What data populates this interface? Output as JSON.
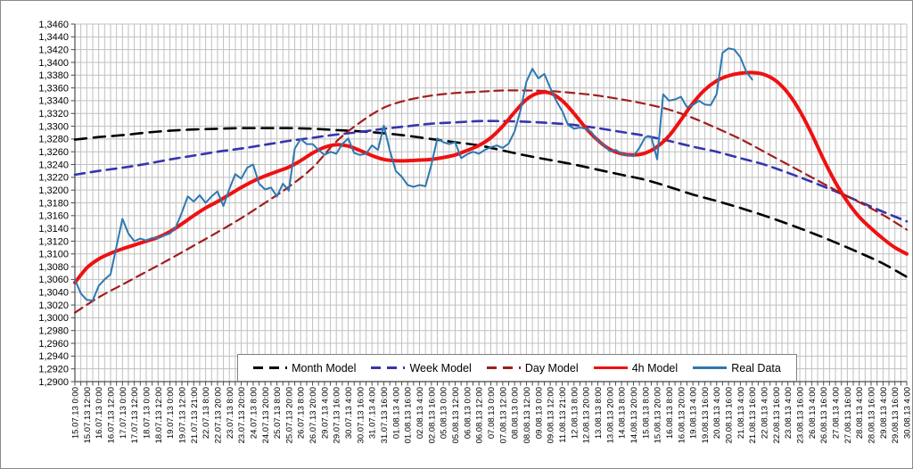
{
  "window": {
    "background": "#ffffff",
    "frame_border_color": "#8a8a8a",
    "axis_color": "#4d4d4d",
    "grid_color": "#c0c0c0",
    "label_color": "#000000"
  },
  "chart_data": {
    "type": "line",
    "title": "",
    "xlabel": "",
    "ylabel": "",
    "grid": {
      "vertical": true,
      "horizontal": true
    },
    "legend_position": "bottom-inside",
    "y_axis": {
      "min": 1.29,
      "max": 1.346,
      "step": 0.002,
      "decimal_separator": ",",
      "tick_labels": [
        "1,3460",
        "1,3440",
        "1,3420",
        "1,3400",
        "1,3380",
        "1,3360",
        "1,3340",
        "1,3320",
        "1,3300",
        "1,3280",
        "1,3260",
        "1,3240",
        "1,3220",
        "1,3200",
        "1,3180",
        "1,3160",
        "1,3140",
        "1,3120",
        "1,3100",
        "1,3080",
        "1,3060",
        "1,3040",
        "1,3020",
        "1,3000",
        "1,2980",
        "1,2960",
        "1,2940",
        "1,2920",
        "1,2900"
      ]
    },
    "x_axis": {
      "total_bars": 140,
      "bars_per_label": 2,
      "label_rotation_deg": -90,
      "labels": [
        "15.07.13 0:00",
        "15.07.13 12:00",
        "16.07.13 0:00",
        "16.07.13 12:00",
        "17.07.13 0:00",
        "17.07.13 12:00",
        "18.07.13 0:00",
        "18.07.13 12:00",
        "19.07.13 0:00",
        "19.07.13 12:00",
        "21.07.13 21:00",
        "22.07.13 8:00",
        "22.07.13 20:00",
        "23.07.13 8:00",
        "23.07.13 20:00",
        "24.07.13 8:00",
        "24.07.13 20:00",
        "25.07.13 8:00",
        "25.07.13 20:00",
        "26.07.13 8:00",
        "26.07.13 20:00",
        "29.07.13 4:00",
        "29.07.13 16:00",
        "30.07.13 4:00",
        "30.07.13 16:00",
        "31.07.13 4:00",
        "31.07.13 16:00",
        "01.08.13 4:00",
        "01.08.13 16:00",
        "02.08.13 4:00",
        "02.08.13 16:00",
        "05.08.13 0:00",
        "05.08.13 12:00",
        "06.08.13 0:00",
        "06.08.13 12:00",
        "07.08.13 0:00",
        "07.08.13 12:00",
        "08.08.13 0:00",
        "08.08.13 12:00",
        "09.08.13 0:00",
        "09.08.13 12:00",
        "11.08.13 21:00",
        "12.08.13 8:00",
        "12.08.13 20:00",
        "13.08.13 8:00",
        "13.08.13 20:00",
        "14.08.13 8:00",
        "14.08.13 20:00",
        "15.08.13 8:00",
        "15.08.13 20:00",
        "16.08.13 8:00",
        "16.08.13 20:00",
        "19.08.13 4:00",
        "19.08.13 16:00",
        "20.08.13 4:00",
        "20.08.13 16:00",
        "21.08.13 4:00",
        "21.08.13 16:00",
        "22.08.13 4:00",
        "22.08.13 16:00",
        "23.08.13 4:00",
        "23.08.13 16:00",
        "26.08.13 4:00",
        "26.08.13 16:00",
        "27.08.13 4:00",
        "27.08.13 16:00",
        "28.08.13 4:00",
        "28.08.13 16:00",
        "29.08.13 4:00",
        "29.08.13 16:00",
        "30.08.13 4:00"
      ]
    },
    "series": [
      {
        "name": "Month Model",
        "color": "#000000",
        "style": "dashed",
        "width": 2.6,
        "dash": "13 8",
        "smooth": true,
        "x_start_bar": 0,
        "x_step_bars": 4,
        "values": [
          1.3279,
          1.3283,
          1.3286,
          1.329,
          1.3293,
          1.3295,
          1.3296,
          1.3297,
          1.3297,
          1.3297,
          1.3296,
          1.3294,
          1.3292,
          1.3289,
          1.3285,
          1.328,
          1.3275,
          1.327,
          1.3262,
          1.3254,
          1.3247,
          1.324,
          1.3232,
          1.3224,
          1.3216,
          1.3205,
          1.3193,
          1.3183,
          1.3172,
          1.316,
          1.3147,
          1.3133,
          1.3118,
          1.3102,
          1.3085,
          1.3064
        ]
      },
      {
        "name": "Week Model",
        "color": "#3535AE",
        "style": "dashed",
        "width": 2.6,
        "dash": "11 7",
        "smooth": true,
        "x_start_bar": 0,
        "x_step_bars": 4,
        "values": [
          1.3224,
          1.323,
          1.3235,
          1.3241,
          1.3248,
          1.3254,
          1.326,
          1.3265,
          1.3271,
          1.3277,
          1.3282,
          1.3287,
          1.3291,
          1.3296,
          1.33,
          1.3304,
          1.3306,
          1.3308,
          1.3308,
          1.3307,
          1.3305,
          1.3302,
          1.3297,
          1.3291,
          1.3285,
          1.3277,
          1.3268,
          1.326,
          1.325,
          1.324,
          1.3227,
          1.3213,
          1.3198,
          1.3182,
          1.3166,
          1.3151
        ]
      },
      {
        "name": "Day Model",
        "color": "#A01E1E",
        "style": "dashed",
        "width": 2.2,
        "dash": "10 6",
        "smooth": true,
        "x_start_bar": 0,
        "x_step_bars": 4,
        "values": [
          1.3008,
          1.3032,
          1.3052,
          1.3072,
          1.3092,
          1.3113,
          1.3134,
          1.3156,
          1.318,
          1.3205,
          1.3235,
          1.3276,
          1.3306,
          1.3329,
          1.3341,
          1.3348,
          1.3352,
          1.3354,
          1.3356,
          1.3356,
          1.3355,
          1.3352,
          1.3348,
          1.3342,
          1.3335,
          1.3326,
          1.3313,
          1.3297,
          1.328,
          1.326,
          1.324,
          1.322,
          1.32,
          1.3181,
          1.3161,
          1.3138
        ]
      },
      {
        "name": "4h Model",
        "color": "#EE1111",
        "style": "solid",
        "width": 4,
        "dash": "",
        "smooth": true,
        "x_start_bar": 0,
        "x_step_bars": 2,
        "values": [
          1.3055,
          1.3078,
          1.3092,
          1.3101,
          1.3108,
          1.3114,
          1.312,
          1.3126,
          1.3135,
          1.3147,
          1.316,
          1.3172,
          1.3182,
          1.3193,
          1.3204,
          1.3214,
          1.3222,
          1.3229,
          1.3236,
          1.3246,
          1.3258,
          1.3267,
          1.3271,
          1.3269,
          1.3262,
          1.3254,
          1.3248,
          1.3246,
          1.3246,
          1.3247,
          1.3248,
          1.3251,
          1.3255,
          1.3262,
          1.327,
          1.3282,
          1.33,
          1.3322,
          1.3342,
          1.3352,
          1.3352,
          1.334,
          1.332,
          1.3297,
          1.3278,
          1.3264,
          1.3257,
          1.3255,
          1.3258,
          1.3268,
          1.3285,
          1.331,
          1.3336,
          1.3357,
          1.3371,
          1.3379,
          1.3383,
          1.3384,
          1.3381,
          1.3371,
          1.3352,
          1.3324,
          1.3288,
          1.3248,
          1.3212,
          1.3182,
          1.3158,
          1.314,
          1.3124,
          1.311,
          1.31
        ]
      },
      {
        "name": "Real Data",
        "color": "#2E78B0",
        "style": "solid",
        "width": 2,
        "dash": "",
        "smooth": false,
        "x_start_bar": 0,
        "x_step_bars": 1,
        "values": [
          1.306,
          1.3038,
          1.3028,
          1.3027,
          1.305,
          1.306,
          1.3068,
          1.3112,
          1.3155,
          1.3132,
          1.312,
          1.3124,
          1.3121,
          1.3125,
          1.3125,
          1.3129,
          1.3132,
          1.3142,
          1.3165,
          1.319,
          1.3182,
          1.3192,
          1.318,
          1.319,
          1.3198,
          1.3175,
          1.3202,
          1.3225,
          1.3218,
          1.3235,
          1.324,
          1.321,
          1.3201,
          1.3204,
          1.319,
          1.321,
          1.3199,
          1.3265,
          1.328,
          1.3272,
          1.3272,
          1.3263,
          1.3255,
          1.326,
          1.3257,
          1.3272,
          1.3281,
          1.3258,
          1.3255,
          1.3257,
          1.327,
          1.3263,
          1.3301,
          1.3262,
          1.323,
          1.3221,
          1.3208,
          1.3205,
          1.3208,
          1.3206,
          1.324,
          1.3281,
          1.3275,
          1.3272,
          1.3275,
          1.325,
          1.3256,
          1.326,
          1.3257,
          1.3263,
          1.3267,
          1.327,
          1.3266,
          1.3273,
          1.3292,
          1.3325,
          1.337,
          1.339,
          1.3375,
          1.3382,
          1.336,
          1.334,
          1.3324,
          1.3302,
          1.3296,
          1.3298,
          1.3296,
          1.329,
          1.3277,
          1.3271,
          1.3261,
          1.3263,
          1.3257,
          1.3255,
          1.3253,
          1.3266,
          1.3283,
          1.3284,
          1.3248,
          1.335,
          1.334,
          1.3342,
          1.3346,
          1.333,
          1.3333,
          1.334,
          1.3334,
          1.3333,
          1.335,
          1.3415,
          1.3422,
          1.342,
          1.3408,
          1.3385,
          1.3373
        ]
      }
    ]
  }
}
